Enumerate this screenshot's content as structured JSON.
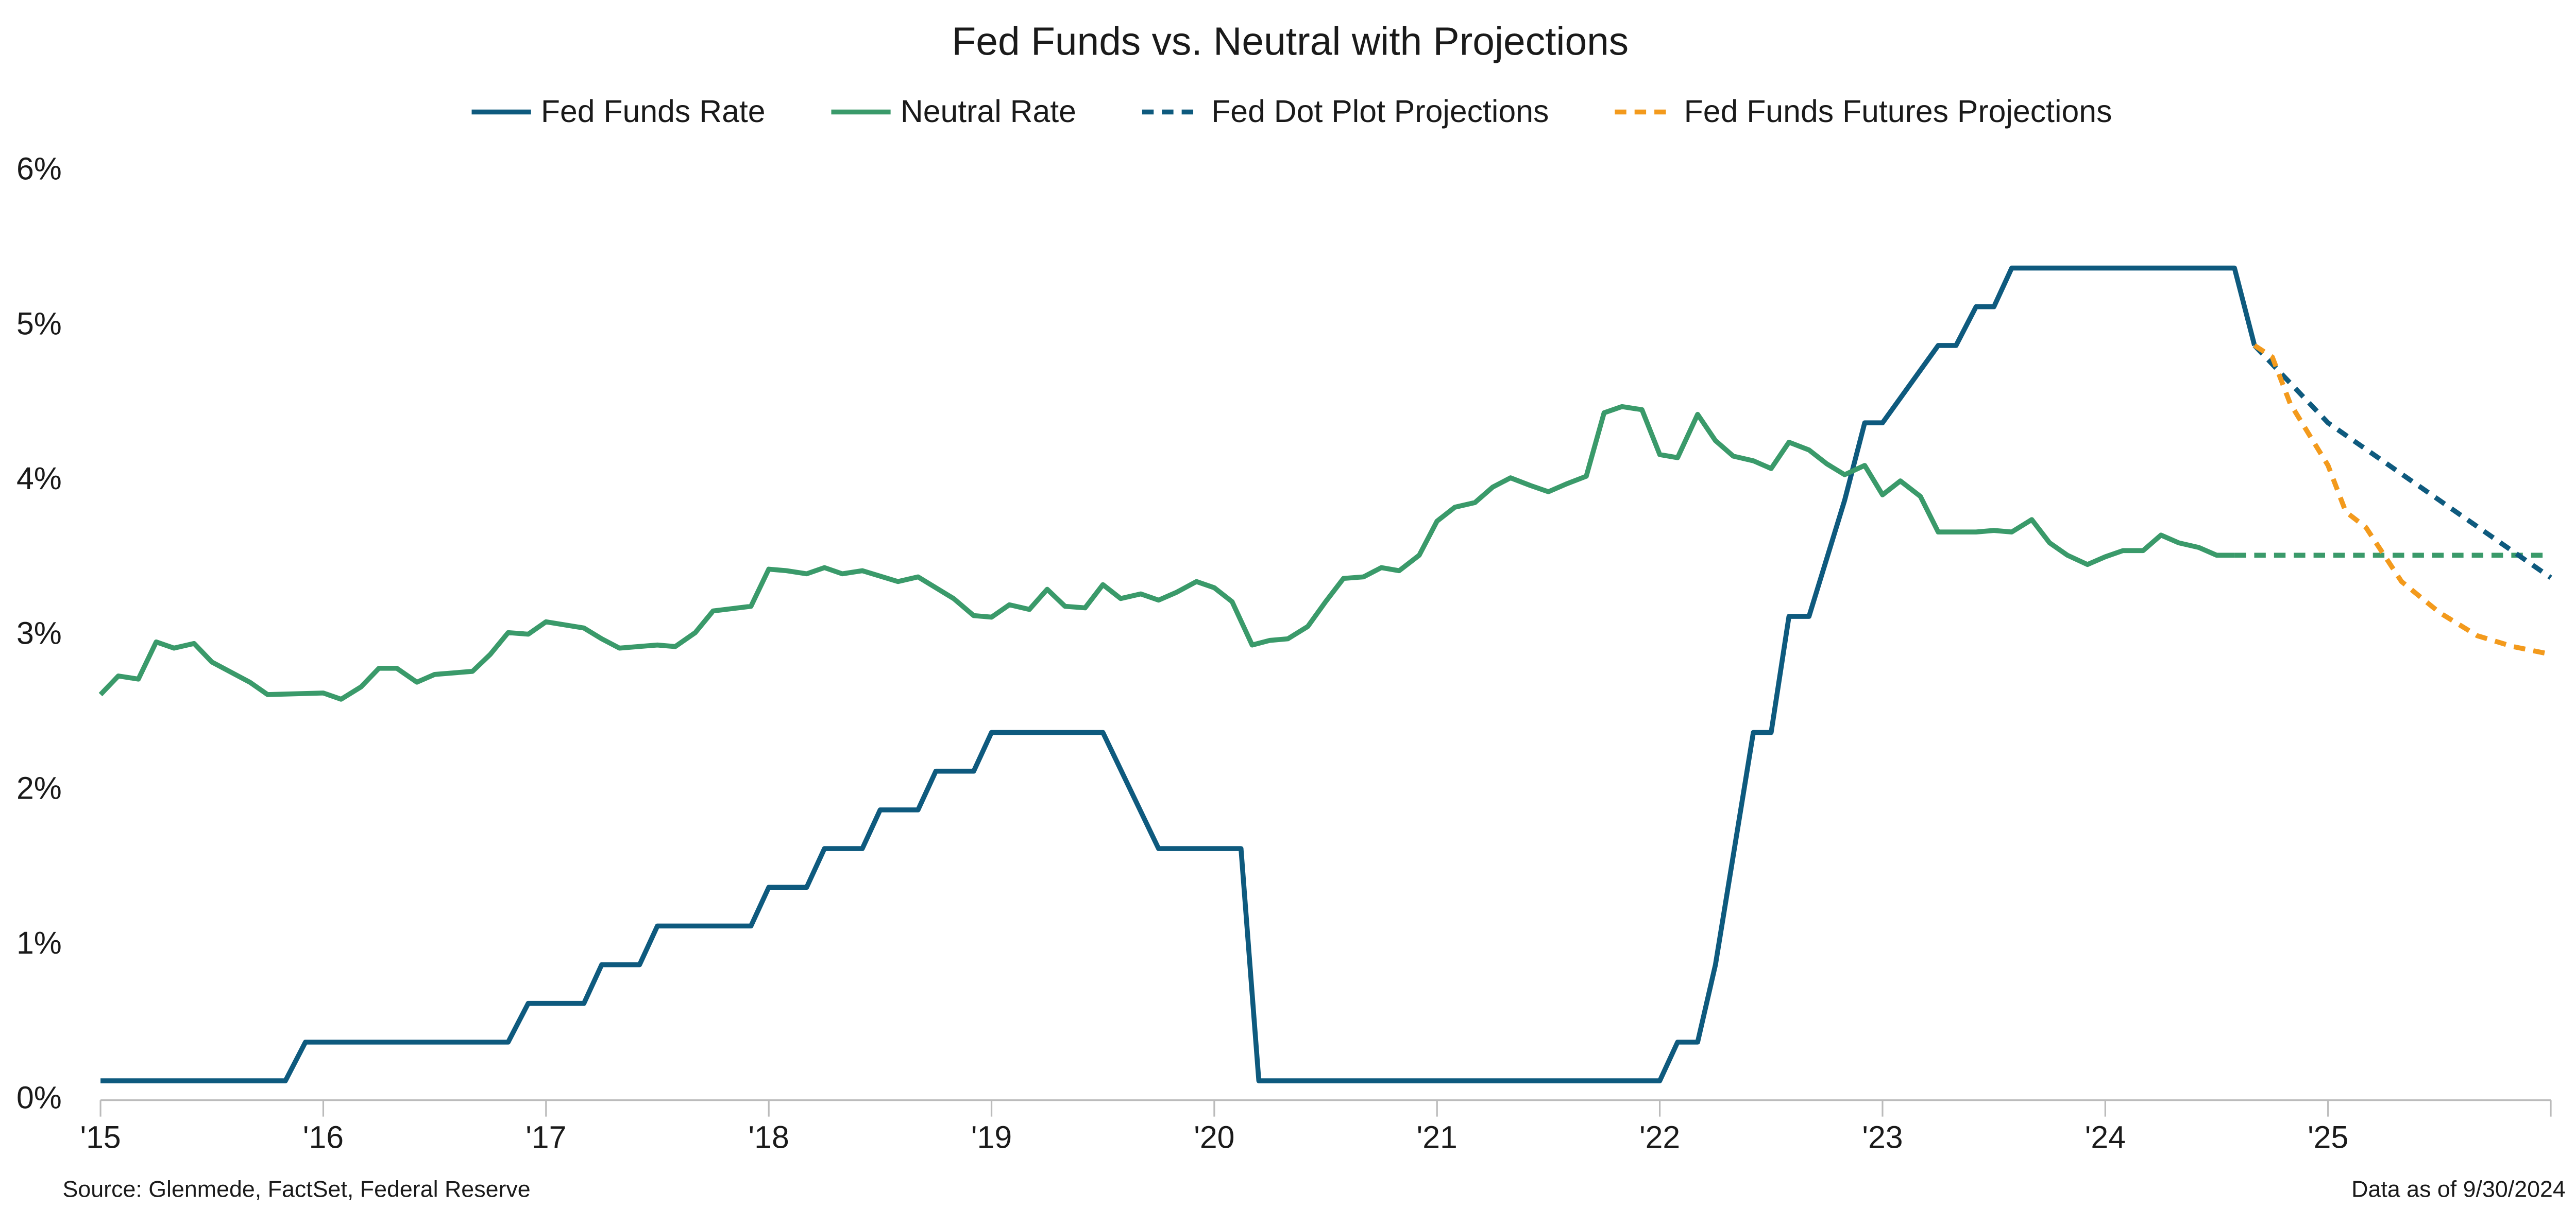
{
  "chart_data": {
    "type": "line",
    "title": "Fed Funds vs. Neutral with Projections",
    "source": "Source: Glenmede, FactSet, Federal Reserve",
    "note": "Data as of 9/30/2024",
    "xlim": [
      2015,
      2026
    ],
    "xticks": [
      {
        "value": 2015,
        "label": "'15"
      },
      {
        "value": 2016,
        "label": "'16"
      },
      {
        "value": 2017,
        "label": "'17"
      },
      {
        "value": 2018,
        "label": "'18"
      },
      {
        "value": 2019,
        "label": "'19"
      },
      {
        "value": 2020,
        "label": "'20"
      },
      {
        "value": 2021,
        "label": "'21"
      },
      {
        "value": 2022,
        "label": "'22"
      },
      {
        "value": 2023,
        "label": "'23"
      },
      {
        "value": 2024,
        "label": "'24"
      },
      {
        "value": 2025,
        "label": "'25"
      }
    ],
    "ylim": [
      0,
      6
    ],
    "yticks": [
      {
        "value": 0,
        "label": "0%"
      },
      {
        "value": 1,
        "label": "1%"
      },
      {
        "value": 2,
        "label": "2%"
      },
      {
        "value": 3,
        "label": "3%"
      },
      {
        "value": 4,
        "label": "4%"
      },
      {
        "value": 5,
        "label": "5%"
      },
      {
        "value": 6,
        "label": "6%"
      }
    ],
    "grid": false,
    "legend": "top",
    "series": [
      {
        "name": "Fed Funds Rate",
        "color": "#0e5a7e",
        "dashed": false,
        "x": [
          2015,
          2015.83,
          2015.92,
          2016.83,
          2016.92,
          2017.17,
          2017.25,
          2017.42,
          2017.5,
          2017.92,
          2018.0,
          2018.17,
          2018.25,
          2018.42,
          2018.5,
          2018.67,
          2018.75,
          2018.92,
          2019.0,
          2019.5,
          2019.75,
          2020.12,
          2020.2,
          2022.0,
          2022.08,
          2022.17,
          2022.25,
          2022.42,
          2022.5,
          2022.58,
          2022.67,
          2022.83,
          2022.92,
          2023.0,
          2023.25,
          2023.33,
          2023.42,
          2023.5,
          2023.58,
          2024.58,
          2024.67
        ],
        "values": [
          0.125,
          0.125,
          0.375,
          0.375,
          0.625,
          0.625,
          0.875,
          0.875,
          1.125,
          1.125,
          1.375,
          1.375,
          1.625,
          1.625,
          1.875,
          1.875,
          2.125,
          2.125,
          2.375,
          2.375,
          1.625,
          1.625,
          0.125,
          0.125,
          0.375,
          0.375,
          0.875,
          2.375,
          2.375,
          3.125,
          3.125,
          3.875,
          4.375,
          4.375,
          4.875,
          4.875,
          5.125,
          5.125,
          5.375,
          5.375,
          4.875
        ]
      },
      {
        "name": "Neutral Rate",
        "color": "#3a9a6a",
        "dashed": false,
        "x": [
          2015,
          2015.08,
          2015.17,
          2015.25,
          2015.33,
          2015.42,
          2015.5,
          2015.67,
          2015.75,
          2016.0,
          2016.08,
          2016.17,
          2016.25,
          2016.33,
          2016.42,
          2016.5,
          2016.67,
          2016.75,
          2016.83,
          2016.92,
          2017.0,
          2017.17,
          2017.25,
          2017.33,
          2017.5,
          2017.58,
          2017.67,
          2017.75,
          2017.92,
          2018.0,
          2018.08,
          2018.17,
          2018.25,
          2018.33,
          2018.42,
          2018.58,
          2018.67,
          2018.83,
          2018.92,
          2019.0,
          2019.08,
          2019.17,
          2019.25,
          2019.33,
          2019.42,
          2019.5,
          2019.58,
          2019.67,
          2019.75,
          2019.83,
          2019.92,
          2020.0,
          2020.08,
          2020.17,
          2020.25,
          2020.33,
          2020.42,
          2020.5,
          2020.58,
          2020.67,
          2020.75,
          2020.83,
          2020.92,
          2021.0,
          2021.08,
          2021.17,
          2021.25,
          2021.33,
          2021.42,
          2021.5,
          2021.58,
          2021.67,
          2021.75,
          2021.83,
          2021.92,
          2022.0,
          2022.08,
          2022.17,
          2022.25,
          2022.33,
          2022.42,
          2022.5,
          2022.58,
          2022.67,
          2022.75,
          2022.83,
          2022.92,
          2023.0,
          2023.08,
          2023.17,
          2023.25,
          2023.42,
          2023.5,
          2023.58,
          2023.67,
          2023.75,
          2023.83,
          2023.92,
          2024.0,
          2024.08,
          2024.17,
          2024.25,
          2024.33,
          2024.42,
          2024.5,
          2024.58
        ],
        "values": [
          2.62,
          2.74,
          2.72,
          2.96,
          2.92,
          2.95,
          2.83,
          2.7,
          2.62,
          2.63,
          2.59,
          2.67,
          2.79,
          2.79,
          2.7,
          2.75,
          2.77,
          2.88,
          3.02,
          3.01,
          3.09,
          3.05,
          2.98,
          2.92,
          2.94,
          2.93,
          3.02,
          3.16,
          3.19,
          3.43,
          3.42,
          3.4,
          3.44,
          3.4,
          3.42,
          3.35,
          3.38,
          3.24,
          3.13,
          3.12,
          3.2,
          3.17,
          3.3,
          3.19,
          3.18,
          3.33,
          3.24,
          3.27,
          3.23,
          3.28,
          3.35,
          3.31,
          3.22,
          2.94,
          2.97,
          2.98,
          3.06,
          3.22,
          3.37,
          3.38,
          3.44,
          3.42,
          3.52,
          3.74,
          3.83,
          3.86,
          3.96,
          4.02,
          3.97,
          3.93,
          3.98,
          4.03,
          4.44,
          4.48,
          4.46,
          4.17,
          4.15,
          4.43,
          4.26,
          4.16,
          4.13,
          4.08,
          4.25,
          4.2,
          4.11,
          4.04,
          4.1,
          3.91,
          4.0,
          3.9,
          3.67,
          3.67,
          3.68,
          3.67,
          3.75,
          3.6,
          3.52,
          3.46,
          3.51,
          3.55,
          3.55,
          3.65,
          3.6,
          3.57,
          3.52,
          3.52
        ]
      },
      {
        "color": "#3a9a6a",
        "dashed": true,
        "x": [
          2024.58,
          2026
        ],
        "values": [
          3.52,
          3.52
        ]
      },
      {
        "name": "Fed Dot Plot Projections",
        "color": "#0e5a7e",
        "dashed": true,
        "x": [
          2024.67,
          2025.0,
          2026
        ],
        "values": [
          4.875,
          4.375,
          3.375
        ]
      },
      {
        "name": "Fed Funds Futures Projections",
        "color": "#f39a1c",
        "dashed": true,
        "x": [
          2024.67,
          2024.75,
          2024.83,
          2025.0,
          2025.08,
          2025.17,
          2025.33,
          2025.5,
          2025.67,
          2025.83,
          2026
        ],
        "values": [
          4.875,
          4.8,
          4.5,
          4.1,
          3.8,
          3.7,
          3.35,
          3.15,
          3.0,
          2.93,
          2.88
        ]
      }
    ]
  }
}
